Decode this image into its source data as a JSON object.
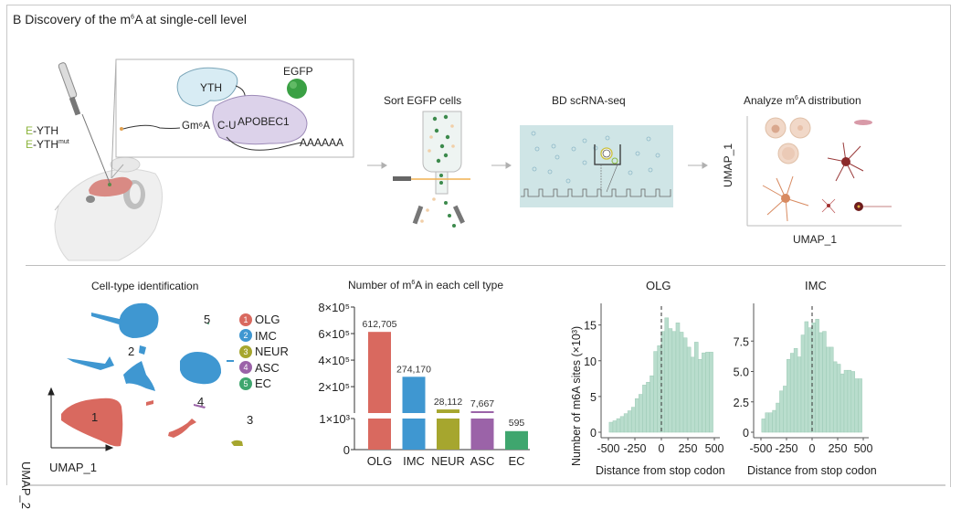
{
  "panel": {
    "title_prefix": "B Discovery of the m",
    "title_sup": "6",
    "title_suffix": "A at single-cell level"
  },
  "workflow": {
    "constructs": [
      {
        "prefix": "E",
        "name": "-YTH",
        "sup": ""
      },
      {
        "prefix": "E",
        "name": "-YTH",
        "sup": "mut"
      }
    ],
    "construct_prefix_color": "#8cb43c",
    "inset": {
      "yth_label": "YTH",
      "egfp_label": "EGFP",
      "apobec_label": "APOBEC1",
      "gm6a_label": "Gm⁶A",
      "cu_label": "C-U",
      "polya_label": "AAAAAA"
    },
    "steps": [
      {
        "label": "Sort  EGFP cells"
      },
      {
        "label": "BD scRNA-seq"
      },
      {
        "label_prefix": "Analyze m",
        "label_sup": "6",
        "label_suffix": "A distribution"
      }
    ],
    "analyze_axes": {
      "x_label": "UMAP_1",
      "y_label": "UMAP_1"
    }
  },
  "umap": {
    "title": "Cell-type identification",
    "x_label": "UMAP_1",
    "y_label": "UMAP_2",
    "cluster_numbers": [
      "1",
      "2",
      "3",
      "4",
      "5"
    ],
    "legend": [
      {
        "num": "1",
        "name": "OLG",
        "color": "#d9695f"
      },
      {
        "num": "2",
        "name": "IMC",
        "color": "#3f97d1"
      },
      {
        "num": "3",
        "name": "NEUR",
        "color": "#a6a62e"
      },
      {
        "num": "4",
        "name": "ASC",
        "color": "#9b63a8"
      },
      {
        "num": "5",
        "name": "EC",
        "color": "#3fa66e"
      }
    ]
  },
  "chart_data": [
    {
      "type": "bar",
      "title": "Number of m6A in each cell type",
      "title_prefix": "Number of m",
      "title_sup": "6",
      "title_suffix": "A in each cell type",
      "categories": [
        "OLG",
        "IMC",
        "NEUR",
        "ASC",
        "EC"
      ],
      "values": [
        612705,
        274170,
        28112,
        7667,
        595
      ],
      "value_labels": [
        "612,705",
        "274,170",
        "28,112",
        "7,667",
        "595"
      ],
      "colors": [
        "#d9695f",
        "#3f97d1",
        "#a6a62e",
        "#9b63a8",
        "#3fa66e"
      ],
      "ytick_labels": [
        "0",
        "1×10³",
        "2×10⁵",
        "4×10⁵",
        "6×10⁵",
        "8×10⁵"
      ],
      "axis_break": true,
      "lower_ylim": [
        0,
        1000
      ],
      "upper_ylim": [
        1000,
        800000
      ],
      "xlabel": "",
      "ylabel": ""
    },
    {
      "type": "bar",
      "title": "OLG",
      "xlabel": "Distance from stop codon",
      "ylabel": "Number of m6A sites (×10³)",
      "x_centers": [
        -475,
        -440,
        -405,
        -370,
        -335,
        -300,
        -265,
        -230,
        -195,
        -160,
        -125,
        -90,
        -55,
        -20,
        15,
        50,
        85,
        120,
        155,
        190,
        225,
        260,
        295,
        330,
        365,
        400,
        435,
        470
      ],
      "values": [
        1.4,
        1.6,
        1.9,
        2.2,
        2.6,
        3.0,
        3.5,
        4.7,
        5.3,
        6.6,
        7.0,
        7.9,
        11.3,
        12.1,
        14.1,
        16.0,
        14.5,
        14.1,
        15.3,
        14.0,
        13.2,
        11.9,
        10.5,
        12.6,
        10.2,
        11.1,
        11.2,
        11.2
      ],
      "xticks": [
        "-500",
        "-250",
        "0",
        "250",
        "500"
      ],
      "yticks": [
        "0",
        "5",
        "10",
        "15"
      ],
      "xlim": [
        -500,
        500
      ],
      "ylim": [
        0,
        17
      ],
      "vline_x": 0,
      "color": "#b9ddcd"
    },
    {
      "type": "bar",
      "title": "IMC",
      "xlabel": "Distance from stop codon",
      "ylabel": "",
      "x_centers": [
        -475,
        -440,
        -405,
        -370,
        -335,
        -300,
        -265,
        -230,
        -195,
        -160,
        -125,
        -90,
        -55,
        -20,
        15,
        50,
        85,
        120,
        155,
        190,
        225,
        260,
        295,
        330,
        365,
        400,
        435,
        470
      ],
      "values": [
        1.1,
        1.6,
        1.6,
        1.8,
        2.4,
        3.4,
        3.8,
        6.0,
        6.5,
        6.9,
        6.2,
        8.0,
        9.1,
        8.6,
        9.0,
        9.3,
        8.2,
        8.3,
        7.0,
        7.0,
        5.8,
        5.6,
        4.8,
        5.1,
        5.1,
        5.0,
        4.4,
        4.4
      ],
      "xticks": [
        "-500",
        "-250",
        "0",
        "250",
        "500"
      ],
      "yticks": [
        "0",
        "2.5",
        "5.0",
        "7.5"
      ],
      "xlim": [
        -500,
        500
      ],
      "ylim": [
        0,
        10
      ],
      "vline_x": 0,
      "color": "#b9ddcd"
    }
  ]
}
